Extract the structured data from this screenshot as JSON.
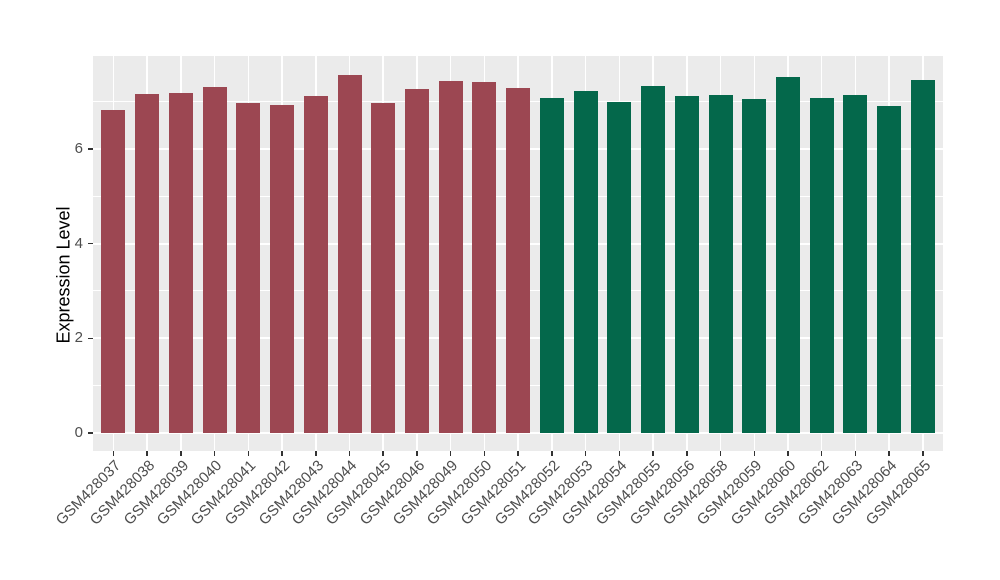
{
  "chart_data": {
    "type": "bar",
    "title": "",
    "xlabel": "",
    "ylabel": "Expression Level",
    "categories": [
      "GSM428037",
      "GSM428038",
      "GSM428039",
      "GSM428040",
      "GSM428041",
      "GSM428042",
      "GSM428043",
      "GSM428044",
      "GSM428045",
      "GSM428046",
      "GSM428049",
      "GSM428050",
      "GSM428051",
      "GSM428052",
      "GSM428053",
      "GSM428054",
      "GSM428055",
      "GSM428056",
      "GSM428058",
      "GSM428059",
      "GSM428060",
      "GSM428062",
      "GSM428063",
      "GSM428064",
      "GSM428065"
    ],
    "values": [
      6.82,
      7.16,
      7.18,
      7.31,
      6.96,
      6.92,
      7.11,
      7.57,
      6.97,
      7.26,
      7.44,
      7.42,
      7.29,
      7.08,
      7.23,
      6.98,
      7.32,
      7.12,
      7.13,
      7.05,
      7.51,
      7.08,
      7.14,
      6.9,
      7.45
    ],
    "group_split_index": 13,
    "group_colors": [
      "#9C4752",
      "#04684B"
    ],
    "y_ticks": [
      0,
      2,
      4,
      6
    ],
    "y_minor_ticks": [
      1,
      3,
      5,
      7
    ],
    "ylim": [
      0,
      7.97
    ],
    "panel_background": "#EBEBEB",
    "gridline_color": "#FFFFFF",
    "grid": "on",
    "legend": "none"
  }
}
